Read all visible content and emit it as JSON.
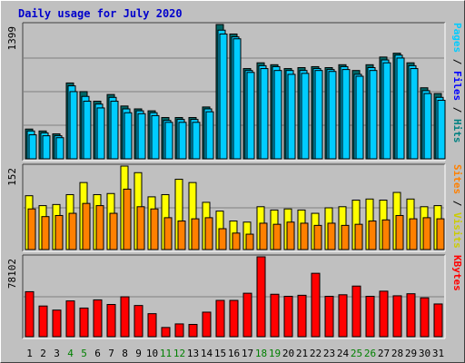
{
  "title": "Daily usage for July 2020",
  "colors": {
    "hits": "#006666",
    "files": "#00CCFF",
    "pages": "#00CCFF",
    "visits": "#FFFF00",
    "sites": "#FF8000",
    "kbytes": "#FF0000",
    "weekend_day": "#008000",
    "weekday": "#000000",
    "title": "#0000CC"
  },
  "chart_data": [
    {
      "type": "bar",
      "panel": "hits-files-pages",
      "axis_max_label": "1399",
      "ylim": [
        0,
        1399
      ],
      "legend": [
        {
          "text": "Pages",
          "color": "#00CCFF"
        },
        {
          "text": " / ",
          "color": "#000000"
        },
        {
          "text": "Files",
          "color": "#0000FF"
        },
        {
          "text": " / ",
          "color": "#000000"
        },
        {
          "text": "Hits",
          "color": "#008080"
        }
      ],
      "series": [
        {
          "name": "Hits",
          "values": [
            310,
            290,
            260,
            790,
            700,
            600,
            670,
            550,
            520,
            500,
            430,
            430,
            430,
            540,
            1399,
            1300,
            940,
            1000,
            980,
            940,
            950,
            960,
            950,
            980,
            920,
            980,
            1060,
            1100,
            1000,
            740,
            680
          ]
        },
        {
          "name": "Files",
          "values": [
            290,
            270,
            240,
            760,
            650,
            570,
            640,
            520,
            500,
            480,
            400,
            410,
            410,
            520,
            1340,
            1270,
            920,
            970,
            960,
            920,
            920,
            940,
            930,
            960,
            880,
            950,
            1030,
            1080,
            970,
            710,
            640
          ]
        },
        {
          "name": "Pages",
          "values": [
            250,
            240,
            220,
            700,
            600,
            530,
            600,
            480,
            470,
            450,
            380,
            380,
            380,
            490,
            1300,
            1250,
            900,
            940,
            920,
            880,
            890,
            920,
            910,
            930,
            860,
            920,
            1000,
            1050,
            940,
            680,
            610
          ]
        }
      ]
    },
    {
      "type": "bar",
      "panel": "visits-sites",
      "axis_max_label": "152",
      "ylim": [
        0,
        152
      ],
      "legend": [
        {
          "text": "Sites",
          "color": "#FF8000"
        },
        {
          "text": " / ",
          "color": "#000000"
        },
        {
          "text": "Visits",
          "color": "#CCCC00"
        }
      ],
      "series": [
        {
          "name": "Visits",
          "values": [
            98,
            80,
            82,
            100,
            122,
            100,
            102,
            152,
            140,
            96,
            100,
            128,
            122,
            86,
            70,
            52,
            50,
            78,
            72,
            74,
            72,
            66,
            76,
            78,
            90,
            92,
            90,
            104,
            92,
            78,
            80
          ]
        },
        {
          "name": "Sites",
          "values": [
            74,
            60,
            62,
            66,
            84,
            80,
            66,
            110,
            78,
            74,
            58,
            52,
            56,
            58,
            38,
            30,
            28,
            48,
            46,
            50,
            48,
            44,
            48,
            44,
            46,
            52,
            54,
            62,
            56,
            58,
            56
          ]
        }
      ]
    },
    {
      "type": "bar",
      "panel": "kbytes",
      "axis_max_label": "78102",
      "ylim": [
        0,
        78102
      ],
      "legend": [
        {
          "text": "KBytes",
          "color": "#FF0000"
        }
      ],
      "series": [
        {
          "name": "KBytes",
          "values": [
            44000,
            30000,
            26000,
            35000,
            28000,
            36000,
            31500,
            39000,
            30500,
            22500,
            9000,
            12500,
            12000,
            24000,
            35500,
            35500,
            42500,
            78102,
            41500,
            39500,
            40500,
            62000,
            39500,
            41000,
            49500,
            39500,
            44500,
            40000,
            42000,
            38000,
            32000
          ]
        }
      ],
      "categories": [
        "1",
        "2",
        "3",
        "4",
        "5",
        "6",
        "7",
        "8",
        "9",
        "10",
        "11",
        "12",
        "13",
        "14",
        "15",
        "16",
        "17",
        "18",
        "19",
        "20",
        "21",
        "22",
        "23",
        "24",
        "25",
        "26",
        "27",
        "28",
        "29",
        "30",
        "31"
      ],
      "weekend_days": [
        4,
        5,
        11,
        12,
        18,
        19,
        25,
        26
      ]
    }
  ]
}
